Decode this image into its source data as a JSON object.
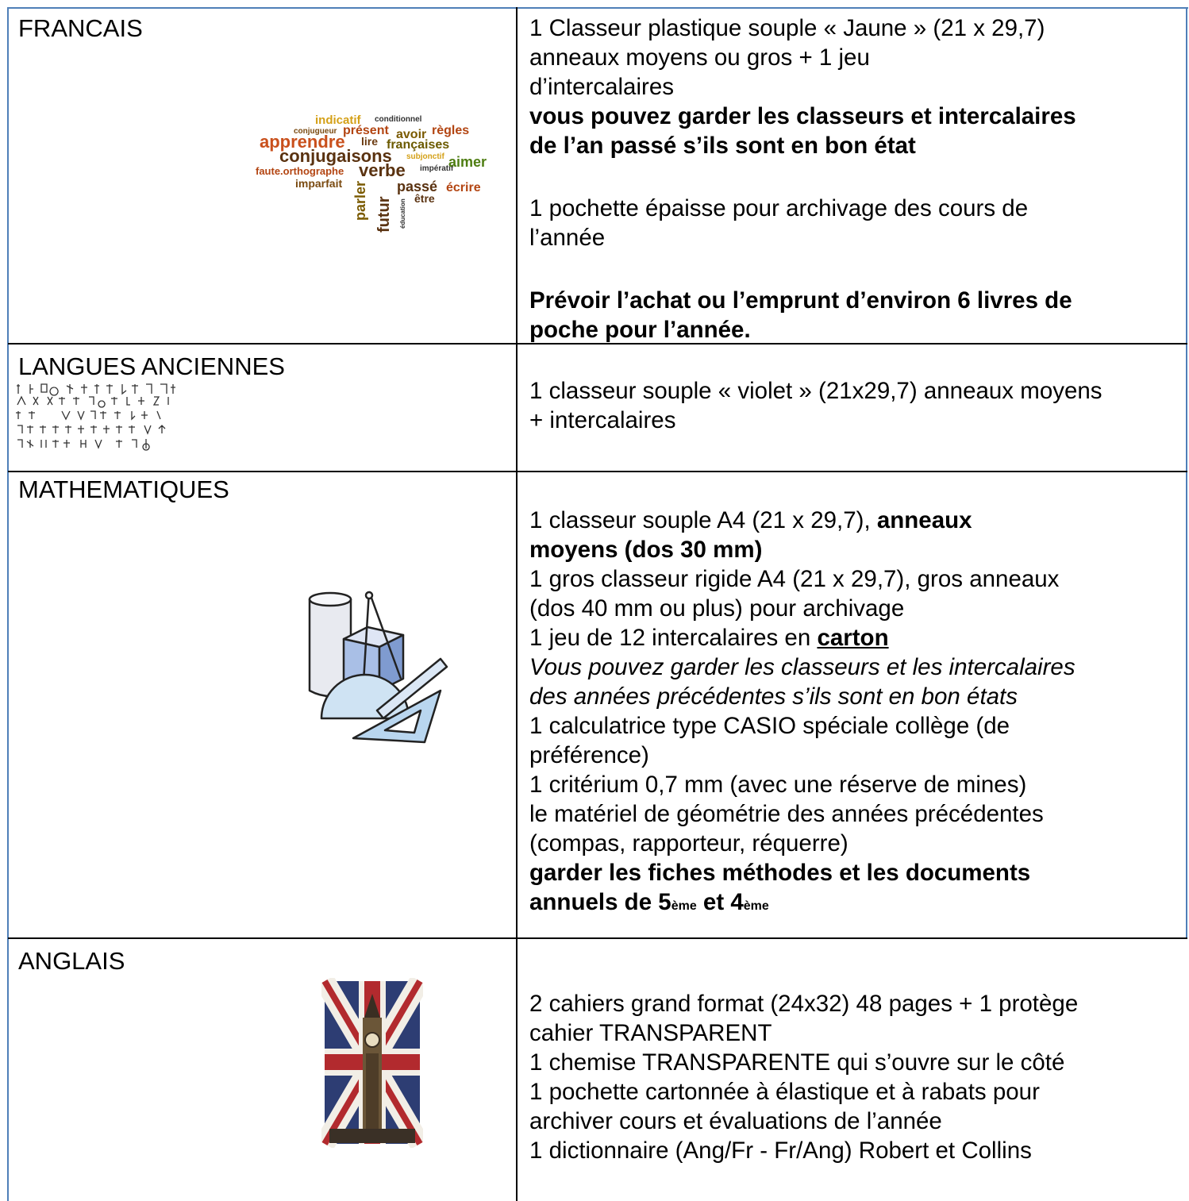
{
  "rows": [
    {
      "subject": "FRANCAIS",
      "lines": [
        "1 Classeur plastique souple « Jaune » (21 x 29,7)",
        "anneaux moyens ou gros + 1 jeu",
        "d’intercalaires",
        "vous pouvez garder les classeurs et intercalaires",
        "de l’an passé s’ils sont en bon état",
        "1 pochette épaisse pour archivage des cours de",
        "l’année",
        "Prévoir l’achat ou l’emprunt d’environ 6 livres de",
        "poche pour l’année."
      ],
      "image_words": [
        "indicatif",
        "conditionnel",
        "conjugueur",
        "présent",
        "avoir",
        "règles",
        "apprendre",
        "lire",
        "françaises",
        "subjonctif",
        "conjugaisons",
        "impératif",
        "aimer",
        "faute.orthographe",
        "verbe",
        "imparfait",
        "passé",
        "écrire",
        "parler",
        "futur",
        "être",
        "éducation"
      ]
    },
    {
      "subject": "LANGUES ANCIENNES",
      "lines": [
        "1 classeur souple « violet » (21x29,7) anneaux moyens",
        "+ intercalaires"
      ]
    },
    {
      "subject": "MATHEMATIQUES",
      "lines": [
        [
          "1 classeur souple A4 (21 x 29,7), ",
          "anneaux"
        ],
        "moyens (dos 30 mm)",
        "1 gros classeur rigide A4 (21 x 29,7), gros anneaux",
        "(dos 40 mm ou plus) pour archivage",
        [
          "1 jeu de 12 intercalaires en ",
          "carton"
        ],
        "Vous pouvez garder les classeurs et les intercalaires",
        "des années précédentes s’ils sont en bon états",
        "1 calculatrice type CASIO spéciale collège (de",
        "préférence)",
        "1 critérium 0,7 mm (avec une réserve de mines)",
        "le matériel de géométrie des années précédentes",
        "(compas, rapporteur, réquerre)",
        "garder les fiches méthodes et les documents",
        [
          "annuels de 5",
          "ème",
          " et 4",
          "ème"
        ]
      ]
    },
    {
      "subject": "ANGLAIS",
      "lines": [
        "2 cahiers grand format (24x32) 48 pages + 1 protège",
        "cahier TRANSPARENT",
        "1 chemise TRANSPARENTE qui s’ouvre sur le côté",
        "1 pochette cartonnée à élastique et à rabats pour",
        "archiver cours et évaluations de l’année",
        "1 dictionnaire (Ang/Fr - Fr/Ang) Robert et Collins"
      ]
    }
  ]
}
